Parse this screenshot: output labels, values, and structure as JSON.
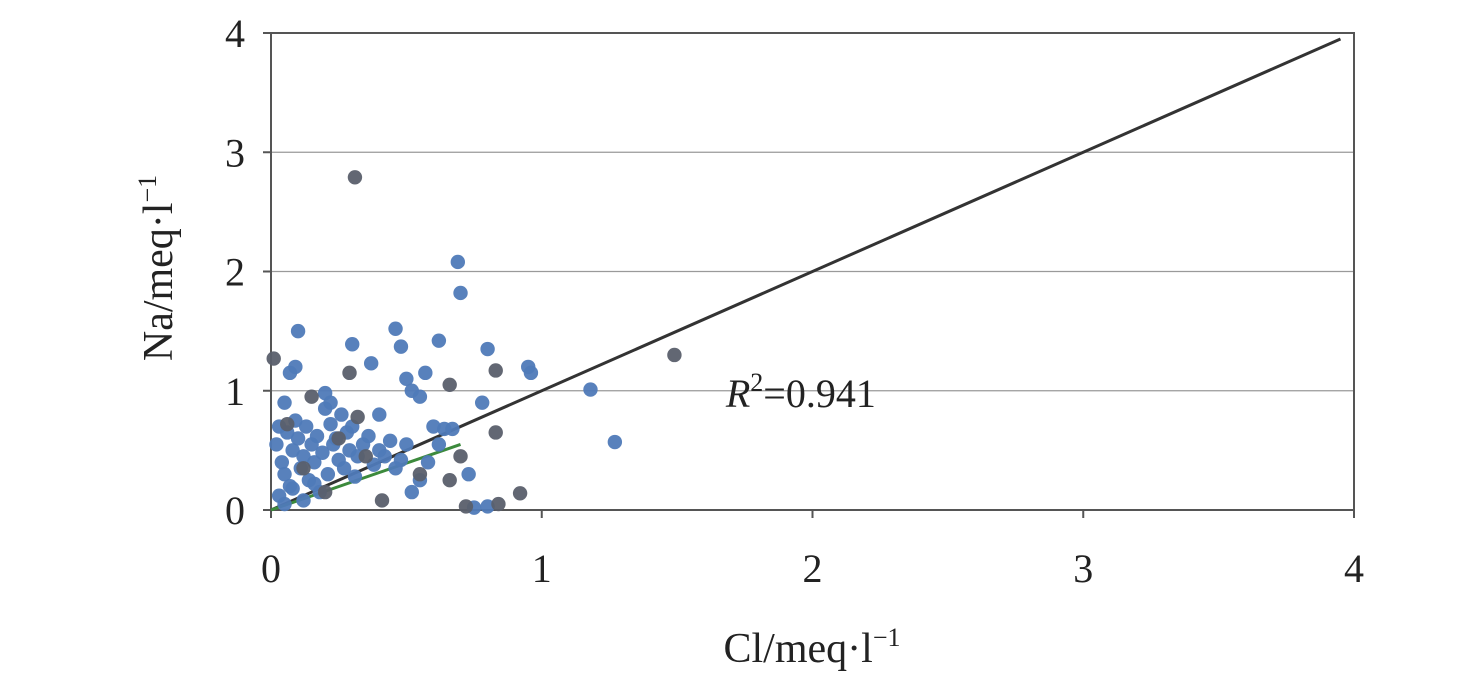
{
  "chart_data": {
    "type": "scatter",
    "xlabel": "Cl/meq·l",
    "xlabel_sup": "−1",
    "ylabel": "Na/meq·l",
    "ylabel_sup": "−1",
    "xlim": [
      0,
      4
    ],
    "ylim": [
      0,
      4
    ],
    "xticks": [
      "0",
      "1",
      "2",
      "3",
      "4"
    ],
    "yticks": [
      "0",
      "1",
      "2",
      "3",
      "4"
    ],
    "grid": "horizontal",
    "colors": {
      "blue_points": "#4f7ab8",
      "gray_points": "#5a5f6c",
      "reference_line": "#333333",
      "fit_segment": "#3c8a3c",
      "grid": "#9a9a9a"
    },
    "reference_line": {
      "x": [
        0,
        3.95
      ],
      "y": [
        0,
        3.95
      ]
    },
    "fit_segment": {
      "x": [
        0,
        0.7
      ],
      "y": [
        0,
        0.55
      ]
    },
    "annotation": {
      "italic": "R",
      "sup": "2",
      "rest": "=0.941",
      "x": 1.68,
      "y": 0.98
    },
    "series": [
      {
        "points": [
          [
            0.02,
            0.55
          ],
          [
            0.03,
            0.7
          ],
          [
            0.04,
            0.4
          ],
          [
            0.05,
            0.3
          ],
          [
            0.06,
            0.65
          ],
          [
            0.07,
            0.2
          ],
          [
            0.08,
            0.5
          ],
          [
            0.09,
            0.75
          ],
          [
            0.1,
            0.6
          ],
          [
            0.11,
            0.35
          ],
          [
            0.12,
            0.45
          ],
          [
            0.13,
            0.7
          ],
          [
            0.14,
            0.25
          ],
          [
            0.15,
            0.55
          ],
          [
            0.16,
            0.4
          ],
          [
            0.17,
            0.62
          ],
          [
            0.18,
            0.15
          ],
          [
            0.19,
            0.48
          ],
          [
            0.2,
            0.85
          ],
          [
            0.21,
            0.3
          ],
          [
            0.22,
            0.72
          ],
          [
            0.23,
            0.55
          ],
          [
            0.24,
            0.6
          ],
          [
            0.25,
            0.42
          ],
          [
            0.26,
            0.8
          ],
          [
            0.27,
            0.35
          ],
          [
            0.28,
            0.65
          ],
          [
            0.29,
            0.5
          ],
          [
            0.3,
            0.7
          ],
          [
            0.31,
            0.28
          ],
          [
            0.32,
            0.45
          ],
          [
            0.34,
            0.55
          ],
          [
            0.36,
            0.62
          ],
          [
            0.38,
            0.38
          ],
          [
            0.4,
            0.5
          ],
          [
            0.42,
            0.45
          ],
          [
            0.44,
            0.58
          ],
          [
            0.46,
            0.35
          ],
          [
            0.48,
            0.42
          ],
          [
            0.5,
            0.55
          ],
          [
            0.03,
            0.12
          ],
          [
            0.05,
            0.05
          ],
          [
            0.08,
            0.18
          ],
          [
            0.12,
            0.08
          ],
          [
            0.16,
            0.22
          ],
          [
            0.05,
            0.9
          ],
          [
            0.07,
            1.15
          ],
          [
            0.09,
            1.2
          ],
          [
            0.1,
            1.5
          ],
          [
            0.2,
            0.98
          ],
          [
            0.22,
            0.9
          ],
          [
            0.3,
            1.39
          ],
          [
            0.37,
            1.23
          ],
          [
            0.4,
            0.8
          ],
          [
            0.46,
            1.52
          ],
          [
            0.48,
            1.37
          ],
          [
            0.5,
            1.1
          ],
          [
            0.52,
            1.0
          ],
          [
            0.55,
            0.95
          ],
          [
            0.57,
            1.15
          ],
          [
            0.6,
            0.7
          ],
          [
            0.62,
            1.42
          ],
          [
            0.64,
            0.68
          ],
          [
            0.69,
            2.08
          ],
          [
            0.7,
            1.82
          ],
          [
            0.73,
            0.3
          ],
          [
            0.78,
            0.9
          ],
          [
            0.8,
            1.35
          ],
          [
            0.95,
            1.2
          ],
          [
            0.96,
            1.15
          ],
          [
            1.18,
            1.01
          ],
          [
            1.27,
            0.57
          ],
          [
            0.55,
            0.25
          ],
          [
            0.58,
            0.4
          ],
          [
            0.62,
            0.55
          ],
          [
            0.67,
            0.68
          ],
          [
            0.52,
            0.15
          ],
          [
            0.75,
            0.02
          ],
          [
            0.8,
            0.03
          ]
        ]
      },
      {
        "points": [
          [
            0.01,
            1.27
          ],
          [
            0.06,
            0.72
          ],
          [
            0.15,
            0.95
          ],
          [
            0.25,
            0.6
          ],
          [
            0.29,
            1.15
          ],
          [
            0.31,
            2.79
          ],
          [
            0.32,
            0.78
          ],
          [
            0.35,
            0.45
          ],
          [
            0.41,
            0.08
          ],
          [
            0.55,
            0.3
          ],
          [
            0.66,
            1.05
          ],
          [
            0.66,
            0.25
          ],
          [
            0.7,
            0.45
          ],
          [
            0.83,
            1.17
          ],
          [
            0.83,
            0.65
          ],
          [
            0.92,
            0.14
          ],
          [
            1.49,
            1.3
          ],
          [
            0.72,
            0.03
          ],
          [
            0.84,
            0.05
          ],
          [
            0.12,
            0.35
          ],
          [
            0.2,
            0.15
          ]
        ]
      }
    ]
  }
}
